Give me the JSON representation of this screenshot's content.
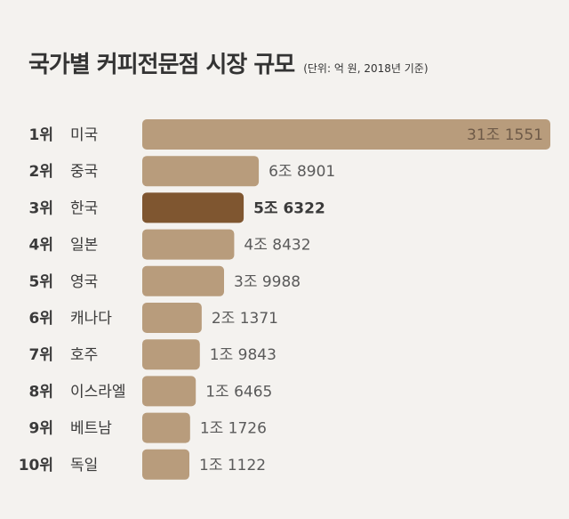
{
  "title": "국가별 커피전문점 시장 규모",
  "unit_note": "(단위: 억 원, 2018년 기준)",
  "colors": {
    "bar": "#b89c7c",
    "highlight": "#7f5630",
    "background": "#f4f2ef"
  },
  "chart_data": {
    "type": "bar",
    "orientation": "horizontal",
    "title": "국가별 커피전문점 시장 규모",
    "unit": "억 원",
    "highlight_index": 2,
    "rows": [
      {
        "rank": "1위",
        "country": "미국",
        "value": 311551,
        "label": "31조 1551"
      },
      {
        "rank": "2위",
        "country": "중국",
        "value": 68901,
        "label": "6조 8901"
      },
      {
        "rank": "3위",
        "country": "한국",
        "value": 56322,
        "label": "5조 6322"
      },
      {
        "rank": "4위",
        "country": "일본",
        "value": 48432,
        "label": "4조 8432"
      },
      {
        "rank": "5위",
        "country": "영국",
        "value": 39988,
        "label": "3조 9988"
      },
      {
        "rank": "6위",
        "country": "캐나다",
        "value": 21371,
        "label": "2조 1371"
      },
      {
        "rank": "7위",
        "country": "호주",
        "value": 19843,
        "label": "1조 9843"
      },
      {
        "rank": "8위",
        "country": "이스라엘",
        "value": 16465,
        "label": "1조 6465"
      },
      {
        "rank": "9위",
        "country": "베트남",
        "value": 11726,
        "label": "1조 1726"
      },
      {
        "rank": "10위",
        "country": "독일",
        "value": 11122,
        "label": "1조 1122"
      }
    ]
  }
}
